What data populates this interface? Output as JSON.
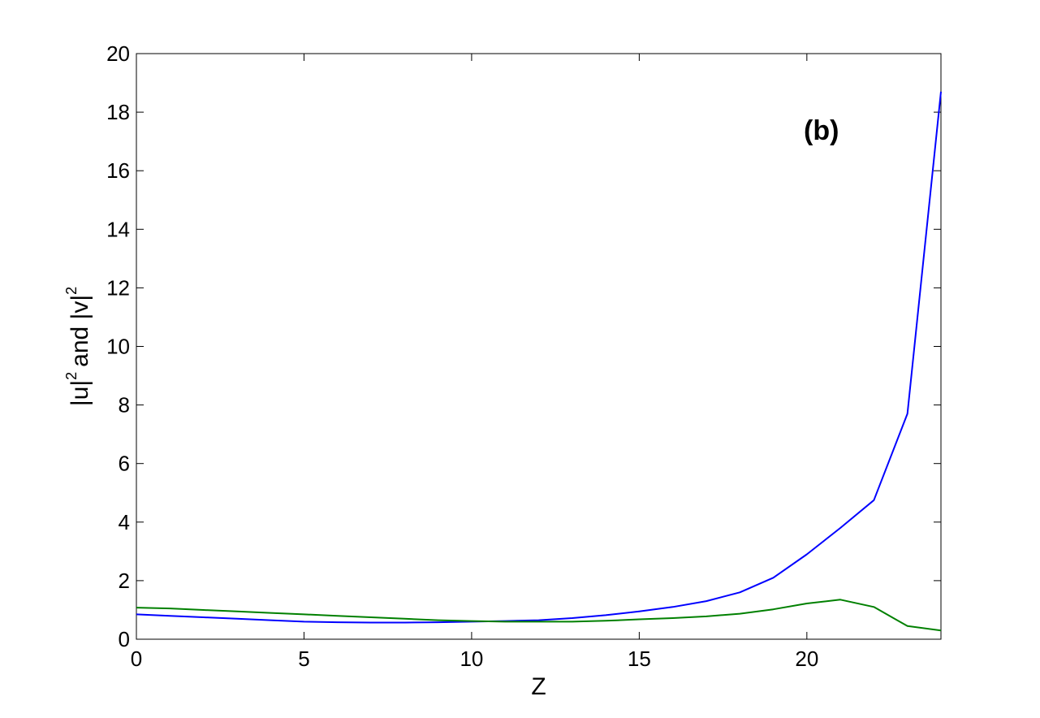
{
  "chart_data": {
    "type": "line",
    "title": "",
    "xlabel": "Z",
    "ylabel_parts": [
      "|u|",
      "2",
      "and |v|",
      "2"
    ],
    "annotation": "(b)",
    "xlim": [
      0,
      24
    ],
    "ylim": [
      0,
      20
    ],
    "x_ticks": [
      0,
      5,
      10,
      15,
      20
    ],
    "y_ticks": [
      0,
      2,
      4,
      6,
      8,
      10,
      12,
      14,
      16,
      18,
      20
    ],
    "grid": false,
    "x": [
      0,
      1,
      2,
      3,
      4,
      5,
      6,
      7,
      8,
      9,
      10,
      11,
      12,
      13,
      14,
      15,
      16,
      17,
      18,
      19,
      20,
      21,
      22,
      23,
      24
    ],
    "series": [
      {
        "color": "#0000ff",
        "values": [
          0.85,
          0.8,
          0.75,
          0.7,
          0.65,
          0.6,
          0.58,
          0.57,
          0.57,
          0.58,
          0.6,
          0.62,
          0.65,
          0.72,
          0.82,
          0.95,
          1.1,
          1.3,
          1.6,
          2.1,
          2.9,
          3.8,
          4.75,
          7.7,
          18.7
        ]
      },
      {
        "color": "#008000",
        "values": [
          1.08,
          1.05,
          1.0,
          0.95,
          0.9,
          0.85,
          0.8,
          0.75,
          0.7,
          0.65,
          0.62,
          0.6,
          0.6,
          0.6,
          0.63,
          0.68,
          0.72,
          0.78,
          0.87,
          1.02,
          1.22,
          1.35,
          1.1,
          0.45,
          0.3
        ]
      }
    ]
  }
}
